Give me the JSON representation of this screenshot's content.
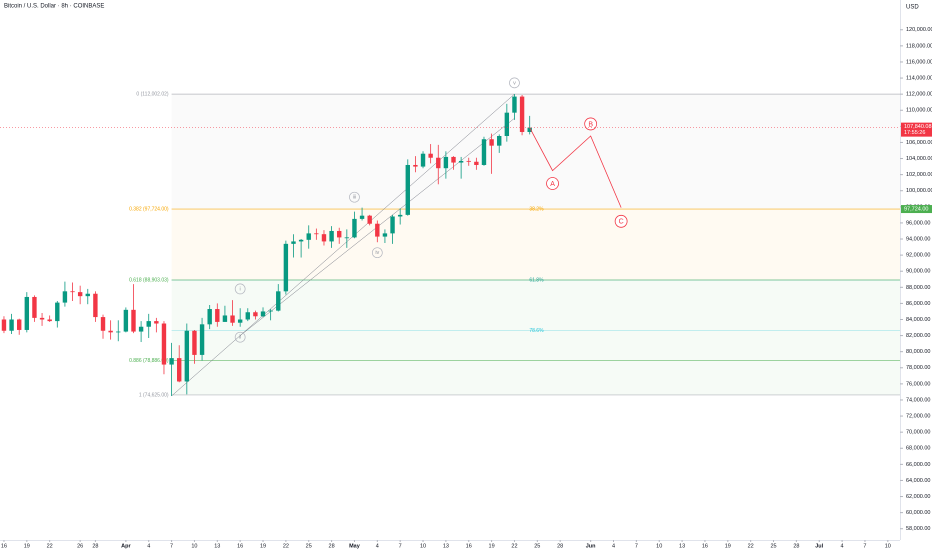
{
  "chart_data": {
    "type": "candlestick",
    "title": "Bitcoin / U.S. Dollar · 8h · COINBASE",
    "currency": "USD",
    "up_color": "#089981",
    "down_color": "#f23645",
    "x": [
      0,
      1,
      2,
      3,
      4,
      5,
      6,
      7,
      8,
      9,
      10,
      11,
      12,
      13,
      14,
      15,
      16,
      17,
      18,
      19,
      20,
      21,
      22,
      23,
      24,
      25,
      26,
      27,
      28,
      29,
      30,
      31,
      32,
      33,
      34,
      35,
      36,
      37,
      38,
      39,
      40,
      41,
      42,
      43,
      44,
      45,
      46,
      47,
      48,
      49,
      50,
      51,
      52,
      53,
      54,
      55,
      56,
      57,
      58,
      59,
      60,
      61,
      62,
      63,
      64,
      65,
      66,
      67,
      68,
      69
    ],
    "open": [
      84000,
      82600,
      84000,
      82700,
      86800,
      84200,
      84000,
      83800,
      86100,
      87500,
      87400,
      86900,
      87200,
      84300,
      82600,
      82400,
      82500,
      85200,
      82500,
      83100,
      83800,
      83500,
      78400,
      79200,
      76300,
      82600,
      79600,
      83400,
      85300,
      83700,
      84500,
      83600,
      84000,
      84900,
      84400,
      85000,
      85100,
      87500,
      93400,
      93700,
      93900,
      94700,
      94600,
      93700,
      95000,
      94200,
      94200,
      96500,
      96900,
      95900,
      94300,
      94700,
      96800,
      97000,
      103200,
      103000,
      104600,
      104100,
      102800,
      104200,
      103500,
      103700,
      103600,
      103200,
      106400,
      105600,
      106800,
      109700,
      111700,
      107300
    ],
    "high": [
      84400,
      84700,
      84100,
      87400,
      87000,
      84800,
      84500,
      86300,
      88700,
      88600,
      88200,
      87800,
      87500,
      84600,
      83900,
      83900,
      85500,
      88400,
      83800,
      84700,
      84200,
      83800,
      81100,
      80800,
      83500,
      82700,
      84200,
      85800,
      86000,
      85700,
      86400,
      85400,
      85400,
      85100,
      85500,
      85300,
      88400,
      93800,
      94600,
      94000,
      95700,
      95300,
      95100,
      95600,
      95400,
      95200,
      97400,
      97900,
      97000,
      96300,
      95200,
      97000,
      97800,
      103900,
      104300,
      104900,
      105800,
      105700,
      104900,
      104300,
      104200,
      104100,
      104100,
      106700,
      107100,
      107000,
      110800,
      112000,
      111900,
      109300
    ],
    "low": [
      82300,
      82200,
      82100,
      82400,
      83700,
      83200,
      83700,
      83000,
      85600,
      86300,
      85900,
      85900,
      83700,
      81600,
      81500,
      81300,
      82400,
      82300,
      81200,
      81700,
      82400,
      77200,
      74500,
      76200,
      74700,
      78500,
      78900,
      82800,
      83100,
      83700,
      83200,
      83100,
      83800,
      84000,
      84300,
      83900,
      85000,
      87100,
      91700,
      91700,
      92800,
      93900,
      93200,
      92900,
      93400,
      92900,
      94100,
      96300,
      95700,
      93600,
      93500,
      93400,
      95800,
      96900,
      102300,
      102800,
      103400,
      100800,
      101500,
      102600,
      101500,
      103100,
      102600,
      103100,
      102100,
      104700,
      106100,
      108800,
      106900,
      107000
    ],
    "close": [
      82600,
      84000,
      82700,
      86800,
      84200,
      84000,
      83800,
      86100,
      87500,
      87400,
      86900,
      87200,
      84300,
      82600,
      82400,
      82500,
      85200,
      82500,
      83100,
      83800,
      83500,
      78400,
      79200,
      76300,
      82600,
      79600,
      83400,
      85300,
      83700,
      84500,
      83600,
      84000,
      84900,
      84400,
      85000,
      85100,
      87500,
      93400,
      93700,
      93900,
      94700,
      94600,
      93700,
      95000,
      94200,
      94200,
      96500,
      96900,
      95900,
      94300,
      94700,
      96800,
      97000,
      103200,
      103000,
      104600,
      104100,
      102800,
      104200,
      103500,
      103700,
      103600,
      103200,
      106400,
      105600,
      106800,
      109700,
      111700,
      107300,
      107840
    ],
    "xlim": [
      -0.52,
      117.6
    ],
    "ylim": [
      56600,
      123700
    ],
    "xticks": [
      {
        "value": 0,
        "label": "16"
      },
      {
        "value": 3,
        "label": "19"
      },
      {
        "value": 6,
        "label": "22"
      },
      {
        "value": 10,
        "label": "26"
      },
      {
        "value": 12,
        "label": "28"
      },
      {
        "value": 16,
        "label": "Apr"
      },
      {
        "value": 19,
        "label": "4"
      },
      {
        "value": 22,
        "label": "7"
      },
      {
        "value": 25,
        "label": "10"
      },
      {
        "value": 28,
        "label": "13"
      },
      {
        "value": 31,
        "label": "16"
      },
      {
        "value": 34,
        "label": "19"
      },
      {
        "value": 37,
        "label": "22"
      },
      {
        "value": 40,
        "label": "25"
      },
      {
        "value": 43,
        "label": "28"
      },
      {
        "value": 46,
        "label": "May"
      },
      {
        "value": 49,
        "label": "4"
      },
      {
        "value": 52,
        "label": "7"
      },
      {
        "value": 55,
        "label": "10"
      },
      {
        "value": 58,
        "label": "13"
      },
      {
        "value": 61,
        "label": "16"
      },
      {
        "value": 64,
        "label": "19"
      },
      {
        "value": 67,
        "label": "22"
      },
      {
        "value": 70,
        "label": "25"
      },
      {
        "value": 73,
        "label": "28"
      },
      {
        "value": 77,
        "label": "Jun"
      },
      {
        "value": 80,
        "label": "4"
      },
      {
        "value": 83,
        "label": "7"
      },
      {
        "value": 86,
        "label": "10"
      },
      {
        "value": 89,
        "label": "13"
      },
      {
        "value": 92,
        "label": "16"
      },
      {
        "value": 95,
        "label": "19"
      },
      {
        "value": 98,
        "label": "22"
      },
      {
        "value": 101,
        "label": "25"
      },
      {
        "value": 104,
        "label": "28"
      },
      {
        "value": 107,
        "label": "Jul"
      },
      {
        "value": 110,
        "label": "4"
      },
      {
        "value": 113,
        "label": "7"
      },
      {
        "value": 116,
        "label": "10"
      }
    ],
    "yticks": [
      {
        "value": 58000,
        "label": "58,000.00"
      },
      {
        "value": 60000,
        "label": "60,000.00"
      },
      {
        "value": 62000,
        "label": "62,000.00"
      },
      {
        "value": 64000,
        "label": "64,000.00"
      },
      {
        "value": 66000,
        "label": "66,000.00"
      },
      {
        "value": 68000,
        "label": "68,000.00"
      },
      {
        "value": 70000,
        "label": "70,000.00"
      },
      {
        "value": 72000,
        "label": "72,000.00"
      },
      {
        "value": 74000,
        "label": "74,000.00"
      },
      {
        "value": 76000,
        "label": "76,000.00"
      },
      {
        "value": 78000,
        "label": "78,000.00"
      },
      {
        "value": 80000,
        "label": "80,000.00"
      },
      {
        "value": 82000,
        "label": "82,000.00"
      },
      {
        "value": 84000,
        "label": "84,000.00"
      },
      {
        "value": 86000,
        "label": "86,000.00"
      },
      {
        "value": 88000,
        "label": "88,000.00"
      },
      {
        "value": 90000,
        "label": "90,000.00"
      },
      {
        "value": 92000,
        "label": "92,000.00"
      },
      {
        "value": 94000,
        "label": "94,000.00"
      },
      {
        "value": 96000,
        "label": "96,000.00"
      },
      {
        "value": 98000,
        "label": "98,000.00"
      },
      {
        "value": 100000,
        "label": "100,000.00"
      },
      {
        "value": 102000,
        "label": "102,000.00"
      },
      {
        "value": 104000,
        "label": "104,000.00"
      },
      {
        "value": 106000,
        "label": "106,000.00"
      },
      {
        "value": 108000,
        "label": "108,000.00"
      },
      {
        "value": 110000,
        "label": "110,000.00"
      },
      {
        "value": 112000,
        "label": "112,000.00"
      },
      {
        "value": 114000,
        "label": "114,000.00"
      },
      {
        "value": 116000,
        "label": "116,000.00"
      },
      {
        "value": 118000,
        "label": "118,000.00"
      },
      {
        "value": 120000,
        "label": "120,000.00"
      }
    ],
    "fib_levels": [
      {
        "label": "0 (112,002.02)",
        "value": 112002.02,
        "color": "#9598a1"
      },
      {
        "label": "0.382 (97,724.00)",
        "value": 97724,
        "color": "#f7a600"
      },
      {
        "label": "0.618 (88,903.03)",
        "value": 88903.03,
        "color": "#4caf50"
      },
      {
        "label": "0.886 (78,886.00)",
        "value": 78886,
        "color": "#4caf50"
      },
      {
        "label": "1 (74,625.00)",
        "value": 74625,
        "color": "#9598a1"
      }
    ],
    "fib_percent": [
      {
        "label": "38.2%",
        "value": 97724,
        "color": "#f7a600"
      },
      {
        "label": "61.8%",
        "value": 88903.03,
        "color": "#26a69a"
      },
      {
        "label": "78.6%",
        "value": 82624,
        "color": "#26c6da"
      }
    ],
    "waves": [
      "i",
      "ii",
      "iii",
      "iv",
      "v"
    ],
    "corrective": [
      "A",
      "B",
      "C"
    ],
    "last_price": {
      "value": 107840.08,
      "label": "107,840.08"
    },
    "countdown": "17:55:26",
    "level_tag": {
      "value": 97724,
      "label": "97,724.00"
    }
  }
}
